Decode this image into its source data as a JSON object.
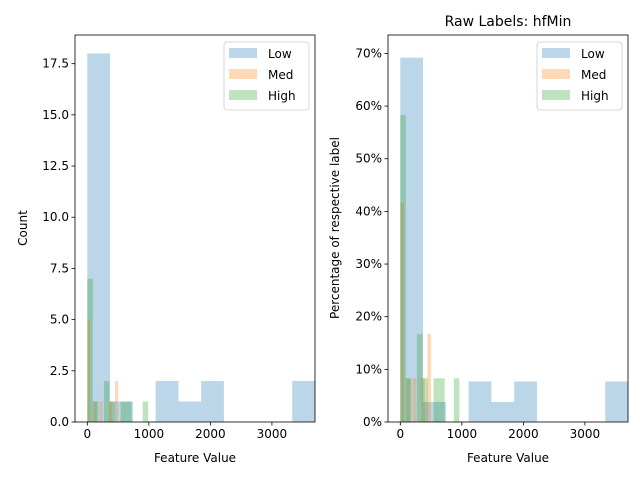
{
  "chart_data": [
    {
      "type": "bar",
      "title": "",
      "xlabel": "Feature Value",
      "ylabel": "Count",
      "xlim": [
        -200,
        3700
      ],
      "ylim": [
        0,
        18.9
      ],
      "xticks": [
        {
          "value": 0,
          "label": "0"
        },
        {
          "value": 1000,
          "label": "1000"
        },
        {
          "value": 2000,
          "label": "2000"
        },
        {
          "value": 3000,
          "label": "3000"
        }
      ],
      "yticks": [
        {
          "value": 0,
          "label": "0.0"
        },
        {
          "value": 2.5,
          "label": "2.5"
        },
        {
          "value": 5,
          "label": "5.0"
        },
        {
          "value": 7.5,
          "label": "7.5"
        },
        {
          "value": 10,
          "label": "10.0"
        },
        {
          "value": 12.5,
          "label": "12.5"
        },
        {
          "value": 15,
          "label": "15.0"
        },
        {
          "value": 17.5,
          "label": "17.5"
        }
      ],
      "legend": "top-right",
      "grid": false,
      "series": [
        {
          "name": "Low",
          "color": "#1f77b4",
          "bins": [
            {
              "x0": 0,
              "x1": 370,
              "y": 18
            },
            {
              "x0": 370,
              "x1": 740,
              "y": 1
            },
            {
              "x0": 1110,
              "x1": 1480,
              "y": 2
            },
            {
              "x0": 1480,
              "x1": 1850,
              "y": 1
            },
            {
              "x0": 1850,
              "x1": 2220,
              "y": 2
            },
            {
              "x0": 3330,
              "x1": 3700,
              "y": 2
            }
          ]
        },
        {
          "name": "Med",
          "color": "#ff7f0e",
          "bins": [
            {
              "x0": 0,
              "x1": 50,
              "y": 5
            },
            {
              "x0": 100,
              "x1": 150,
              "y": 1
            },
            {
              "x0": 200,
              "x1": 250,
              "y": 1
            },
            {
              "x0": 350,
              "x1": 400,
              "y": 1
            },
            {
              "x0": 450,
              "x1": 500,
              "y": 2
            }
          ]
        },
        {
          "name": "High",
          "color": "#2ca02c",
          "bins": [
            {
              "x0": 0,
              "x1": 90,
              "y": 7
            },
            {
              "x0": 90,
              "x1": 180,
              "y": 1
            },
            {
              "x0": 270,
              "x1": 360,
              "y": 2
            },
            {
              "x0": 360,
              "x1": 450,
              "y": 1
            },
            {
              "x0": 540,
              "x1": 630,
              "y": 1
            },
            {
              "x0": 630,
              "x1": 720,
              "y": 1
            },
            {
              "x0": 900,
              "x1": 990,
              "y": 1
            }
          ]
        }
      ]
    },
    {
      "type": "bar",
      "title": "Raw Labels: hfMin",
      "xlabel": "Feature Value",
      "ylabel": "Percentage of respective label",
      "xlim": [
        -200,
        3700
      ],
      "ylim": [
        0,
        0.735
      ],
      "xticks": [
        {
          "value": 0,
          "label": "0"
        },
        {
          "value": 1000,
          "label": "1000"
        },
        {
          "value": 2000,
          "label": "2000"
        },
        {
          "value": 3000,
          "label": "3000"
        }
      ],
      "yticks": [
        {
          "value": 0,
          "label": "0%"
        },
        {
          "value": 0.1,
          "label": "10%"
        },
        {
          "value": 0.2,
          "label": "20%"
        },
        {
          "value": 0.3,
          "label": "30%"
        },
        {
          "value": 0.4,
          "label": "40%"
        },
        {
          "value": 0.5,
          "label": "50%"
        },
        {
          "value": 0.6,
          "label": "60%"
        },
        {
          "value": 0.7,
          "label": "70%"
        }
      ],
      "legend": "top-right",
      "grid": false,
      "series": [
        {
          "name": "Low",
          "color": "#1f77b4",
          "bins": [
            {
              "x0": 0,
              "x1": 370,
              "y": 0.692
            },
            {
              "x0": 370,
              "x1": 740,
              "y": 0.038
            },
            {
              "x0": 1110,
              "x1": 1480,
              "y": 0.077
            },
            {
              "x0": 1480,
              "x1": 1850,
              "y": 0.038
            },
            {
              "x0": 1850,
              "x1": 2220,
              "y": 0.077
            },
            {
              "x0": 3330,
              "x1": 3700,
              "y": 0.077
            }
          ]
        },
        {
          "name": "Med",
          "color": "#ff7f0e",
          "bins": [
            {
              "x0": 0,
              "x1": 60,
              "y": 0.417
            },
            {
              "x0": 100,
              "x1": 160,
              "y": 0.083
            },
            {
              "x0": 200,
              "x1": 260,
              "y": 0.083
            },
            {
              "x0": 340,
              "x1": 400,
              "y": 0.083
            },
            {
              "x0": 440,
              "x1": 500,
              "y": 0.167
            }
          ]
        },
        {
          "name": "High",
          "color": "#2ca02c",
          "bins": [
            {
              "x0": 0,
              "x1": 90,
              "y": 0.583
            },
            {
              "x0": 90,
              "x1": 180,
              "y": 0.083
            },
            {
              "x0": 270,
              "x1": 360,
              "y": 0.167
            },
            {
              "x0": 360,
              "x1": 450,
              "y": 0.083
            },
            {
              "x0": 540,
              "x1": 630,
              "y": 0.083
            },
            {
              "x0": 630,
              "x1": 720,
              "y": 0.083
            },
            {
              "x0": 870,
              "x1": 960,
              "y": 0.083
            }
          ]
        }
      ]
    }
  ]
}
